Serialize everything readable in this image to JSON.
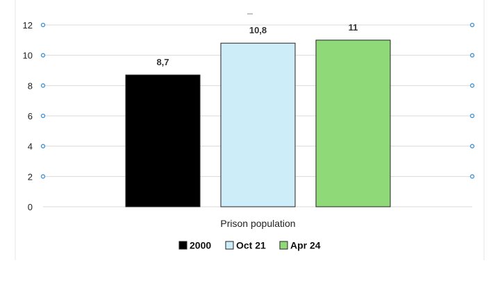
{
  "chart_data": {
    "type": "bar",
    "categories": [
      "Prison population"
    ],
    "series": [
      {
        "name": "2000",
        "values": [
          8.7
        ],
        "label": "8,7",
        "color": "#000000"
      },
      {
        "name": "Oct 21",
        "values": [
          10.8
        ],
        "label": "10,8",
        "color": "#cdeef9"
      },
      {
        "name": "Apr 24",
        "values": [
          11
        ],
        "label": "11",
        "color": "#8fd978"
      }
    ],
    "yticks": [
      "0",
      "2",
      "4",
      "6",
      "8",
      "10",
      "12"
    ],
    "ylim": [
      0,
      12
    ],
    "grid": true,
    "legend_position": "bottom",
    "title": "",
    "xlabel": "",
    "ylabel": "",
    "colors": {
      "grid": "#d9d9d9",
      "handle": "#3a8fd6",
      "bar_outline": "#222222"
    }
  }
}
